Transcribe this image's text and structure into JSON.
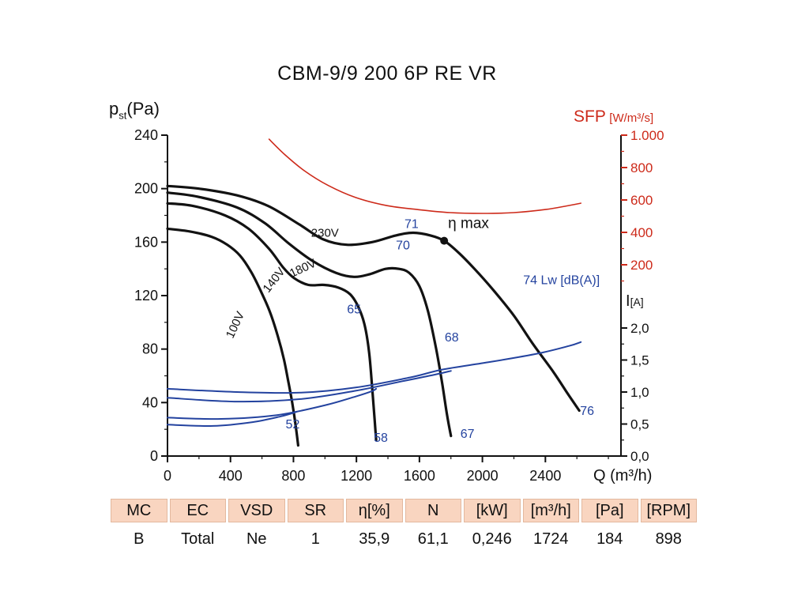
{
  "axis_labels": {
    "pst_main": "p",
    "pst_sub": "st",
    "pst_unit": "(Pa)",
    "sfp_main": "SFP",
    "sfp_unit": "[W/m³/s]",
    "i_main": "I",
    "i_unit": "[A]",
    "q_label": "Q (m³/h)"
  },
  "colors": {
    "curve_black": "#121212",
    "curve_blue": "#24439f",
    "sfp_red": "#cd2a1a",
    "table_header_bg": "#f9d5c0"
  },
  "table": {
    "headers": [
      "MC",
      "EC",
      "VSD",
      "SR",
      "η[%]",
      "N",
      "[kW]",
      "[m³/h]",
      "[Pa]",
      "[RPM]"
    ],
    "values": [
      "B",
      "Total",
      "Ne",
      "1",
      "35,9",
      "61,1",
      "0,246",
      "1724",
      "184",
      "898"
    ]
  },
  "chart_data": {
    "type": "line",
    "title": "CBM-9/9 200 6P RE VR",
    "axes": {
      "x": {
        "label": "Q (m³/h)",
        "min": 0,
        "max": 2880,
        "major_ticks": [
          0,
          400,
          800,
          1200,
          1600,
          2000,
          2400
        ],
        "minor_step": 200
      },
      "y_left": {
        "label": "pst (Pa)",
        "min": 0,
        "max": 240,
        "major_ticks": [
          0,
          40,
          80,
          120,
          160,
          200,
          240
        ],
        "minor_step": 20
      },
      "y_right_sfp": {
        "label": "SFP [W/m³/s]",
        "min": 0,
        "max": 1000,
        "major_ticks": [
          1000,
          800,
          600,
          400,
          200
        ],
        "tick_labels": [
          "1.000",
          "800",
          "600",
          "400",
          "200"
        ],
        "minor_step": 100,
        "color": "#cd2a1a"
      },
      "y_right_current": {
        "label": "I [A]",
        "min": 0,
        "max": 2.0,
        "major_ticks": [
          2.0,
          1.5,
          1.0,
          0.5,
          0.0
        ],
        "tick_labels": [
          "2,0",
          "1,5",
          "1,0",
          "0,5",
          "0,0"
        ],
        "minor_step": 0.25
      }
    },
    "series": [
      {
        "name": "pressure-230V",
        "axis": "p",
        "color": "#121212",
        "width": 3.2,
        "points": [
          [
            0,
            202
          ],
          [
            200,
            200
          ],
          [
            440,
            195
          ],
          [
            640,
            187
          ],
          [
            840,
            173
          ],
          [
            990,
            162
          ],
          [
            1140,
            158
          ],
          [
            1300,
            160
          ],
          [
            1450,
            165
          ],
          [
            1560,
            167
          ],
          [
            1670,
            165
          ],
          [
            1757,
            161
          ],
          [
            1850,
            152
          ],
          [
            1950,
            140
          ],
          [
            2070,
            124
          ],
          [
            2200,
            105
          ],
          [
            2320,
            84
          ],
          [
            2450,
            63
          ],
          [
            2540,
            47
          ],
          [
            2615,
            34
          ]
        ]
      },
      {
        "name": "pressure-180V",
        "axis": "p",
        "color": "#121212",
        "width": 3.2,
        "points": [
          [
            0,
            197
          ],
          [
            190,
            194
          ],
          [
            440,
            186
          ],
          [
            620,
            174
          ],
          [
            770,
            159
          ],
          [
            920,
            146
          ],
          [
            1070,
            137
          ],
          [
            1185,
            134
          ],
          [
            1285,
            136
          ],
          [
            1385,
            140
          ],
          [
            1470,
            140
          ],
          [
            1535,
            137
          ],
          [
            1600,
            127
          ],
          [
            1655,
            108
          ],
          [
            1705,
            81
          ],
          [
            1745,
            54
          ],
          [
            1775,
            31
          ],
          [
            1800,
            15
          ]
        ]
      },
      {
        "name": "pressure-140V",
        "axis": "p",
        "color": "#121212",
        "width": 3.2,
        "points": [
          [
            0,
            189
          ],
          [
            165,
            187
          ],
          [
            365,
            180
          ],
          [
            515,
            170
          ],
          [
            645,
            155
          ],
          [
            735,
            141
          ],
          [
            805,
            133
          ],
          [
            895,
            128
          ],
          [
            995,
            128
          ],
          [
            1085,
            126
          ],
          [
            1160,
            121
          ],
          [
            1210,
            112
          ],
          [
            1250,
            99
          ],
          [
            1280,
            78
          ],
          [
            1300,
            51
          ],
          [
            1315,
            28
          ],
          [
            1325,
            12
          ]
        ]
      },
      {
        "name": "pressure-100V",
        "axis": "p",
        "color": "#121212",
        "width": 3.2,
        "points": [
          [
            0,
            170
          ],
          [
            140,
            168
          ],
          [
            280,
            164
          ],
          [
            380,
            158
          ],
          [
            460,
            150
          ],
          [
            530,
            138
          ],
          [
            590,
            124
          ],
          [
            650,
            108
          ],
          [
            700,
            90
          ],
          [
            740,
            72
          ],
          [
            770,
            54
          ],
          [
            795,
            38
          ],
          [
            815,
            22
          ],
          [
            830,
            8
          ]
        ]
      },
      {
        "name": "current-230V",
        "axis": "i",
        "color": "#24439f",
        "width": 2,
        "points": [
          [
            0,
            1.05
          ],
          [
            440,
            1.0
          ],
          [
            845,
            0.99
          ],
          [
            1195,
            1.07
          ],
          [
            1545,
            1.23
          ],
          [
            1745,
            1.35
          ],
          [
            2050,
            1.47
          ],
          [
            2350,
            1.6
          ],
          [
            2550,
            1.72
          ],
          [
            2625,
            1.78
          ]
        ]
      },
      {
        "name": "current-180V",
        "axis": "i",
        "color": "#24439f",
        "width": 2,
        "points": [
          [
            0,
            0.91
          ],
          [
            440,
            0.85
          ],
          [
            845,
            0.89
          ],
          [
            1195,
            1.02
          ],
          [
            1495,
            1.17
          ],
          [
            1695,
            1.27
          ],
          [
            1800,
            1.33
          ]
        ]
      },
      {
        "name": "current-140V",
        "axis": "i",
        "color": "#24439f",
        "width": 2,
        "points": [
          [
            0,
            0.6
          ],
          [
            340,
            0.58
          ],
          [
            695,
            0.64
          ],
          [
            995,
            0.79
          ],
          [
            1195,
            0.93
          ],
          [
            1295,
            1.01
          ],
          [
            1325,
            1.05
          ]
        ]
      },
      {
        "name": "current-100V",
        "axis": "i",
        "color": "#24439f",
        "width": 2,
        "points": [
          [
            0,
            0.49
          ],
          [
            290,
            0.47
          ],
          [
            540,
            0.53
          ],
          [
            720,
            0.62
          ],
          [
            820,
            0.69
          ]
        ]
      },
      {
        "name": "sfp",
        "axis": "sfp",
        "color": "#cd2a1a",
        "width": 1.6,
        "points": [
          [
            645,
            975
          ],
          [
            745,
            880
          ],
          [
            870,
            780
          ],
          [
            1020,
            690
          ],
          [
            1195,
            615
          ],
          [
            1395,
            565
          ],
          [
            1595,
            540
          ],
          [
            1795,
            522
          ],
          [
            2000,
            517
          ],
          [
            2200,
            522
          ],
          [
            2400,
            541
          ],
          [
            2550,
            566
          ],
          [
            2625,
            580
          ]
        ]
      }
    ],
    "point_labels": [
      {
        "text": "230V",
        "q": 1000,
        "v": 167,
        "color": "#121212",
        "size": 15,
        "rotate": 0,
        "anchor": "middle"
      },
      {
        "text": "180V",
        "q": 870,
        "v": 141,
        "color": "#121212",
        "size": 15,
        "rotate": -25,
        "anchor": "middle"
      },
      {
        "text": "140V",
        "q": 695,
        "v": 133,
        "color": "#121212",
        "size": 15,
        "rotate": -52,
        "anchor": "middle"
      },
      {
        "text": "100V",
        "q": 452,
        "v": 100,
        "color": "#121212",
        "size": 15,
        "rotate": -65,
        "anchor": "middle"
      },
      {
        "text": "52",
        "q": 795,
        "v": 24,
        "color": "#24439f",
        "size": 16,
        "rotate": 0,
        "anchor": "middle"
      },
      {
        "text": "58",
        "q": 1355,
        "v": 14,
        "color": "#24439f",
        "size": 16,
        "rotate": 0,
        "anchor": "middle"
      },
      {
        "text": "65",
        "q": 1185,
        "v": 110,
        "color": "#24439f",
        "size": 16,
        "rotate": 0,
        "anchor": "middle"
      },
      {
        "text": "67",
        "q": 1905,
        "v": 17,
        "color": "#24439f",
        "size": 16,
        "rotate": 0,
        "anchor": "middle"
      },
      {
        "text": "68",
        "q": 1805,
        "v": 89,
        "color": "#24439f",
        "size": 16,
        "rotate": 0,
        "anchor": "middle"
      },
      {
        "text": "70",
        "q": 1495,
        "v": 158,
        "color": "#24439f",
        "size": 16,
        "rotate": 0,
        "anchor": "middle"
      },
      {
        "text": "71",
        "q": 1550,
        "v": 174,
        "color": "#24439f",
        "size": 16,
        "rotate": 0,
        "anchor": "middle"
      },
      {
        "text": "74 Lw [dB(A)]",
        "q": 2259,
        "v": 132,
        "color": "#24439f",
        "size": 16,
        "rotate": 0,
        "anchor": "start"
      },
      {
        "text": "76",
        "q": 2665,
        "v": 34,
        "color": "#24439f",
        "size": 16,
        "rotate": 0,
        "anchor": "middle"
      }
    ],
    "eta_max": {
      "q": 1757,
      "p": 161,
      "label": "η max",
      "label_q": 1782,
      "label_p": 174
    }
  }
}
